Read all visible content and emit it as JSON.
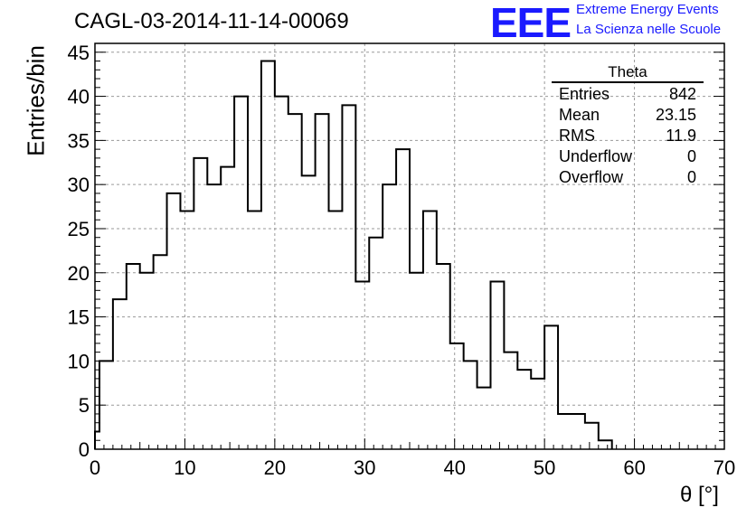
{
  "header": {
    "title": "CAGL-03-2014-11-14-00069",
    "logo_text": "EEE",
    "logo_line1": "Extreme Energy Events",
    "logo_line2": "La Scienza nelle Scuole"
  },
  "stats_box": {
    "title": "Theta",
    "rows": [
      {
        "label": "Entries",
        "value": "842"
      },
      {
        "label": "Mean",
        "value": "23.15"
      },
      {
        "label": "RMS",
        "value": "11.9"
      },
      {
        "label": "Underflow",
        "value": "0"
      },
      {
        "label": "Overflow",
        "value": "0"
      }
    ]
  },
  "colors": {
    "line": "#000000",
    "grid": "#9a9a9a",
    "logo": "#1a1aff"
  },
  "chart_data": {
    "type": "bar",
    "style": "step-histogram",
    "title": "CAGL-03-2014-11-14-00069",
    "xlabel": "θ [°]",
    "ylabel": "Entries/bin",
    "xlim": [
      0,
      70
    ],
    "ylim": [
      0,
      46
    ],
    "grid": true,
    "x_ticks": [
      0,
      10,
      20,
      30,
      40,
      50,
      60,
      70
    ],
    "y_ticks": [
      0,
      5,
      10,
      15,
      20,
      25,
      30,
      35,
      40,
      45
    ],
    "bin_width": 1.5,
    "bin_edges_start": 0.5,
    "values": [
      10,
      17,
      21,
      20,
      22,
      29,
      27,
      33,
      30,
      32,
      40,
      27,
      44,
      40,
      38,
      31,
      38,
      27,
      39,
      19,
      24,
      30,
      34,
      20,
      27,
      21,
      12,
      10,
      7,
      19,
      11,
      9,
      8,
      14,
      4,
      4,
      3,
      1
    ],
    "first_partial_bin": {
      "x_from": 0,
      "x_to": 0.5,
      "value": 2
    }
  }
}
